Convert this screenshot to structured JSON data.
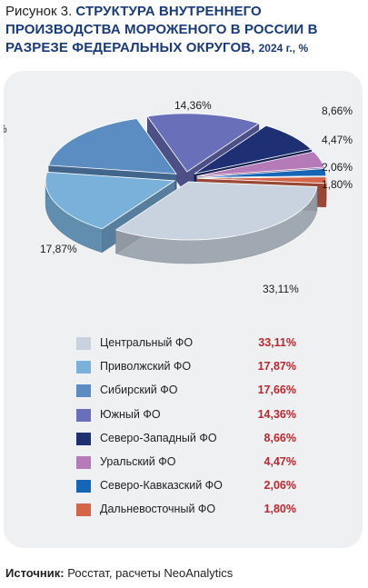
{
  "figure": {
    "prefix": "Рисунок 3.",
    "title_main": "СТРУКТУРА ВНУТРЕННЕГО ПРОИЗВОДСТВА МОРОЖЕНОГО В РОССИИ В РАЗРЕЗЕ ФЕДЕРАЛЬНЫХ ОКРУГОВ,",
    "title_suffix": "2024 г., %"
  },
  "chart_data": {
    "type": "pie",
    "style": "3d-exploded",
    "series": [
      {
        "name": "Центральный ФО",
        "value": 33.11,
        "label": "33,11%",
        "color": "#c8d3df"
      },
      {
        "name": "Приволжский ФО",
        "value": 17.87,
        "label": "17,87%",
        "color": "#79b1da"
      },
      {
        "name": "Сибирский ФО",
        "value": 17.66,
        "label": "17,66%",
        "color": "#5b8cc2"
      },
      {
        "name": "Южный ФО",
        "value": 14.36,
        "label": "14,36%",
        "color": "#6a6fba"
      },
      {
        "name": "Северо-Западный ФО",
        "value": 8.66,
        "label": "8,66%",
        "color": "#1e2f73"
      },
      {
        "name": "Уральский ФО",
        "value": 4.47,
        "label": "4,47%",
        "color": "#b57ab8"
      },
      {
        "name": "Северо-Кавказский ФО",
        "value": 2.06,
        "label": "2,06%",
        "color": "#1666b8"
      },
      {
        "name": "Дальневосточный ФО",
        "value": 1.8,
        "label": "1,80%",
        "color": "#d4644a"
      }
    ],
    "legend_position": "bottom"
  },
  "legend": {
    "items": [
      {
        "label": "Центральный ФО",
        "value": "33,11%"
      },
      {
        "label": "Приволжский ФО",
        "value": "17,87%"
      },
      {
        "label": "Сибирский ФО",
        "value": "17,66%"
      },
      {
        "label": "Южный ФО",
        "value": "14,36%"
      },
      {
        "label": "Северо-Западный ФО",
        "value": "8,66%"
      },
      {
        "label": "Уральский ФО",
        "value": "4,47%"
      },
      {
        "label": "Северо-Кавказский ФО",
        "value": "2,06%"
      },
      {
        "label": "Дальневосточный ФО",
        "value": "1,80%"
      }
    ]
  },
  "source": {
    "label": "Источник:",
    "text": "Росстат, расчеты NeoAnalytics"
  }
}
